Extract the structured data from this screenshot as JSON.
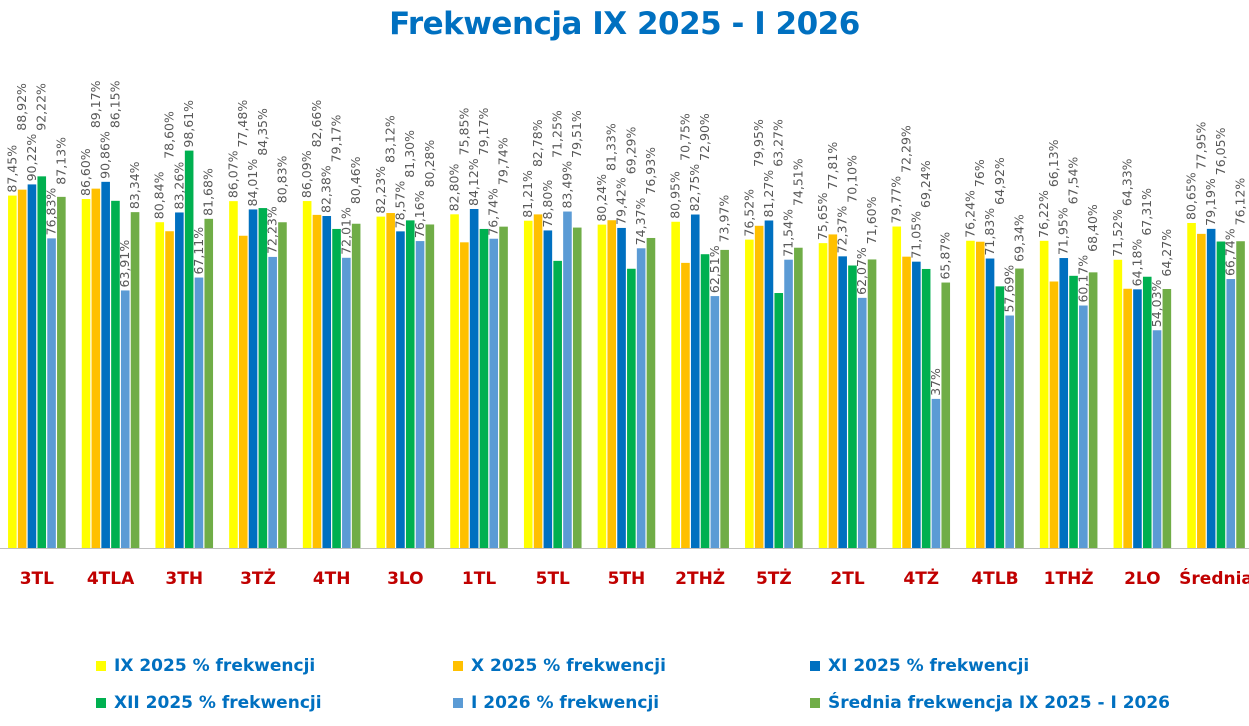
{
  "chart_data": {
    "type": "bar",
    "title": "Frekwencja IX 2025 - I 2026",
    "xlabel": "",
    "ylabel": "",
    "ylim": [
      0,
      113
    ],
    "grid": false,
    "legend_placement": "bottom",
    "categories": [
      "3TL",
      "4TLA",
      "3TH",
      "3TŻ",
      "4TH",
      "3LO",
      "1TL",
      "5TL",
      "5TH",
      "2THŻ",
      "5TŻ",
      "2TL",
      "4TŻ",
      "4TLB",
      "1THŻ",
      "2LO",
      "Średnia"
    ],
    "category_color": "#C00000",
    "series": [
      {
        "name": "IX 2025 % frekwencji",
        "color": "#FFFF00",
        "values": [
          87.45,
          86.6,
          80.84,
          86.07,
          86.09,
          82.23,
          82.8,
          81.21,
          80.24,
          80.95,
          76.52,
          75.65,
          79.77,
          76.24,
          76.22,
          71.52,
          80.65
        ],
        "labels": [
          "87,45%",
          "86,60%",
          "80,84%",
          "86,07%",
          "86,09%",
          "82,23%",
          "82,80%",
          "81,21%",
          "80,24%",
          "80,95%",
          "76,52%",
          "75,65%",
          "79,77%",
          "76,24%",
          "76,22%",
          "71,52%",
          "80,65%"
        ]
      },
      {
        "name": "X 2025 % frekwencji",
        "color": "#FFC000",
        "values": [
          88.92,
          89.17,
          78.6,
          77.48,
          82.66,
          83.12,
          75.85,
          82.78,
          81.33,
          70.75,
          79.95,
          77.81,
          72.29,
          76,
          66.13,
          64.33,
          77.95
        ],
        "labels": [
          "88,92%",
          "89,17%",
          "78,60%",
          "77,48%",
          "82,66%",
          "83,12%",
          "75,85%",
          "82,78%",
          "81,33%",
          "70,75%",
          "79,95%",
          "77,81%",
          "72,29%",
          "76%",
          "66,13%",
          "64,33%",
          "77,95%"
        ]
      },
      {
        "name": "XI 2025 % frekwencji",
        "color": "#0070C0",
        "values": [
          90.22,
          90.86,
          83.26,
          84.01,
          82.38,
          78.57,
          84.12,
          78.8,
          79.42,
          82.75,
          81.27,
          72.37,
          71.05,
          71.83,
          71.95,
          64.18,
          79.19
        ],
        "labels": [
          "90,22%",
          "90,86%",
          "83,26%",
          "84,01%",
          "82,38%",
          "78,57%",
          "84,12%",
          "78,80%",
          "79,42%",
          "82,75%",
          "81,27%",
          "72,37%",
          "71,05%",
          "71,83%",
          "71,95%",
          "64,18%",
          "79,19%"
        ]
      },
      {
        "name": "XII 2025 % frekwencji",
        "color": "#00B050",
        "values": [
          92.22,
          86.15,
          98.61,
          84.35,
          79.17,
          81.3,
          79.17,
          71.25,
          69.29,
          72.9,
          63.27,
          70.1,
          69.24,
          64.92,
          67.54,
          67.31,
          76.05
        ],
        "labels": [
          "92,22%",
          "86,15%",
          "98,61%",
          "84,35%",
          "79,17%",
          "81,30%",
          "79,17%",
          "71,25%",
          "69,29%",
          "72,90%",
          "63,27%",
          "70,10%",
          "69,24%",
          "64,92%",
          "67,54%",
          "67,31%",
          "76,05%"
        ]
      },
      {
        "name": "I 2026 % frekwencji",
        "color": "#5B9BD5",
        "values": [
          76.83,
          63.91,
          67.11,
          72.23,
          72.01,
          76.16,
          76.74,
          83.49,
          74.37,
          62.51,
          71.54,
          62.07,
          37,
          57.69,
          60.17,
          54.03,
          66.74
        ],
        "labels": [
          "76,83%",
          "63,91%",
          "67,11%",
          "72,23%",
          "72,01%",
          "76,16%",
          "76,74%",
          "83,49%",
          "74,37%",
          "62,51%",
          "71,54%",
          "62,07%",
          "37%",
          "57,69%",
          "60,17%",
          "54,03%",
          "66,74%"
        ]
      },
      {
        "name": "Średnia frekwencja IX 2025 -  I  2026",
        "color": "#70AD47",
        "values": [
          87.13,
          83.34,
          81.68,
          80.83,
          80.46,
          80.28,
          79.74,
          79.51,
          76.93,
          73.97,
          74.51,
          71.6,
          65.87,
          69.34,
          68.4,
          64.27,
          76.12
        ],
        "labels": [
          "87,13%",
          "83,34%",
          "81,68%",
          "80,83%",
          "80,46%",
          "80,28%",
          "79,74%",
          "79,51%",
          "76,93%",
          "73,97%",
          "74,51%",
          "71,60%",
          "65,87%",
          "69,34%",
          "68,40%",
          "64,27%",
          "76,12%"
        ]
      }
    ]
  }
}
